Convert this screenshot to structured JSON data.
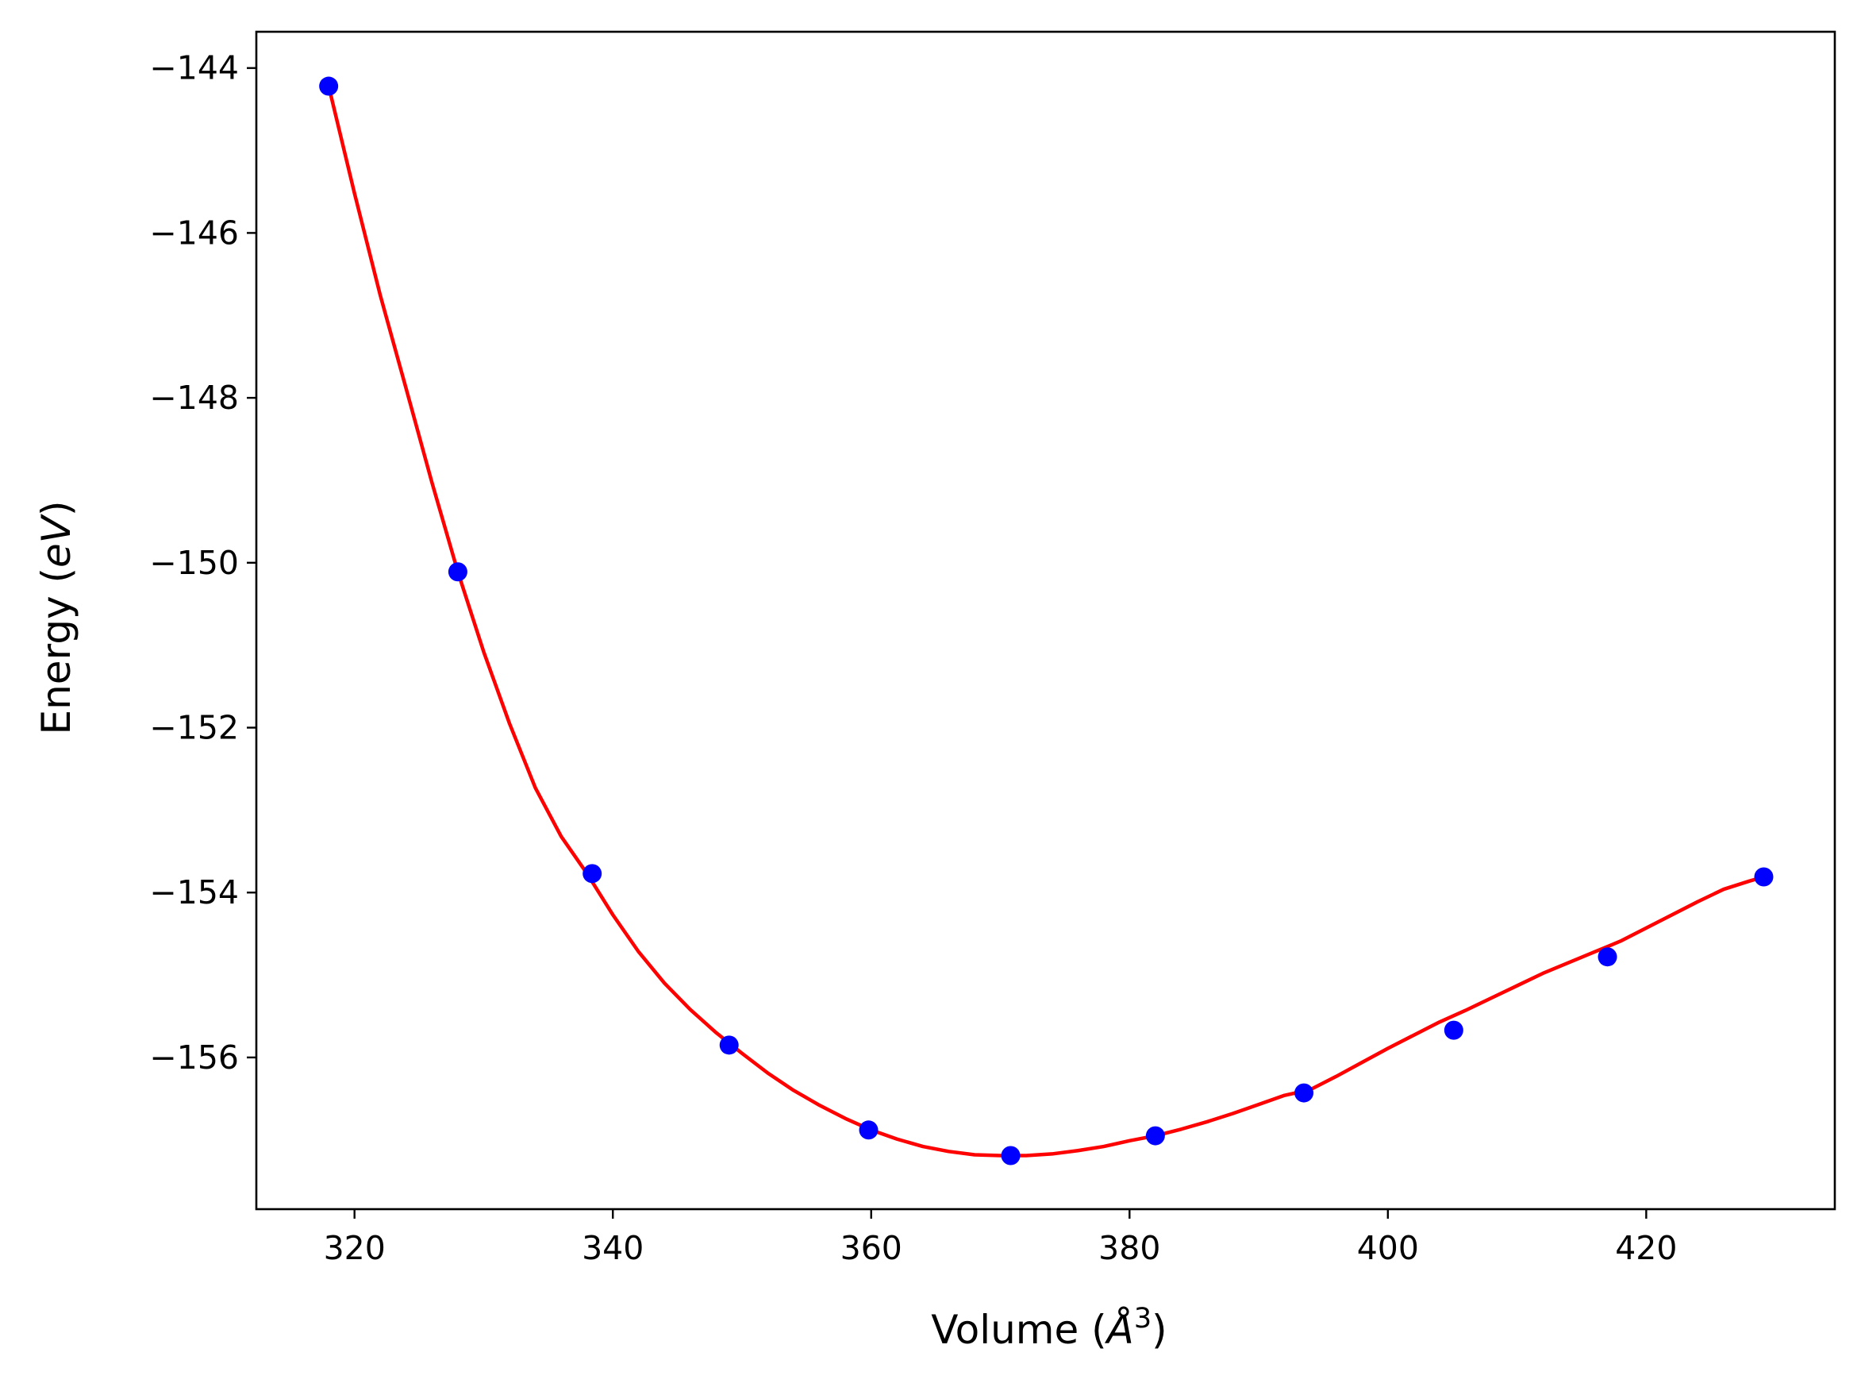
{
  "chart_data": {
    "type": "scatter",
    "title": "",
    "xlabel": "Volume (Å³)",
    "xlabel_parts": {
      "text": "Volume (",
      "symbol": "Å",
      "sup": "3",
      "close": ")"
    },
    "ylabel": "Energy (eV)",
    "ylabel_parts": {
      "text": "Energy (",
      "unit": "eV",
      "close": ")"
    },
    "xlim": [
      312.4,
      434.6
    ],
    "ylim": [
      -157.84,
      -143.56
    ],
    "xticks": [
      320,
      340,
      360,
      380,
      400,
      420
    ],
    "yticks": [
      -144,
      -146,
      -148,
      -150,
      -152,
      -154,
      -156
    ],
    "xtick_labels": [
      "320",
      "340",
      "360",
      "380",
      "400",
      "420"
    ],
    "ytick_labels": [
      "−144",
      "−146",
      "−148",
      "−150",
      "−152",
      "−154",
      "−156"
    ],
    "grid": false,
    "series": [
      {
        "kind": "points",
        "color": "#0000ff",
        "x": [
          318.0,
          328.0,
          338.4,
          349.0,
          359.8,
          370.8,
          382.0,
          393.5,
          405.1,
          417.0,
          429.1
        ],
        "y": [
          -144.22,
          -150.11,
          -153.77,
          -155.85,
          -156.88,
          -157.19,
          -156.95,
          -156.43,
          -155.67,
          -154.78,
          -153.81
        ]
      },
      {
        "kind": "fit-curve",
        "color": "#ff0000",
        "x": [
          318.0,
          320,
          322,
          324,
          326,
          328,
          330,
          332,
          334,
          336,
          338,
          340,
          342,
          344,
          346,
          348,
          350,
          352,
          354,
          356,
          358,
          360,
          362,
          364,
          366,
          368,
          370,
          372,
          374,
          376,
          378,
          380,
          382,
          384,
          386,
          388,
          390,
          392,
          394,
          396,
          398,
          400,
          402,
          404,
          406,
          408,
          410,
          412,
          414,
          416,
          418,
          420,
          422,
          424,
          426,
          428,
          429.1
        ],
        "y": [
          -144.22,
          -145.52,
          -146.76,
          -147.89,
          -149.03,
          -150.11,
          -151.08,
          -151.95,
          -152.73,
          -153.32,
          -153.77,
          -154.27,
          -154.72,
          -155.1,
          -155.42,
          -155.7,
          -155.95,
          -156.19,
          -156.4,
          -156.58,
          -156.74,
          -156.88,
          -156.99,
          -157.08,
          -157.14,
          -157.18,
          -157.19,
          -157.19,
          -157.17,
          -157.13,
          -157.08,
          -157.01,
          -156.95,
          -156.87,
          -156.78,
          -156.68,
          -156.57,
          -156.46,
          -156.39,
          -156.23,
          -156.06,
          -155.89,
          -155.73,
          -155.57,
          -155.43,
          -155.28,
          -155.13,
          -154.98,
          -154.85,
          -154.72,
          -154.59,
          -154.43,
          -154.27,
          -154.11,
          -153.96,
          -153.86,
          -153.81
        ]
      }
    ]
  }
}
